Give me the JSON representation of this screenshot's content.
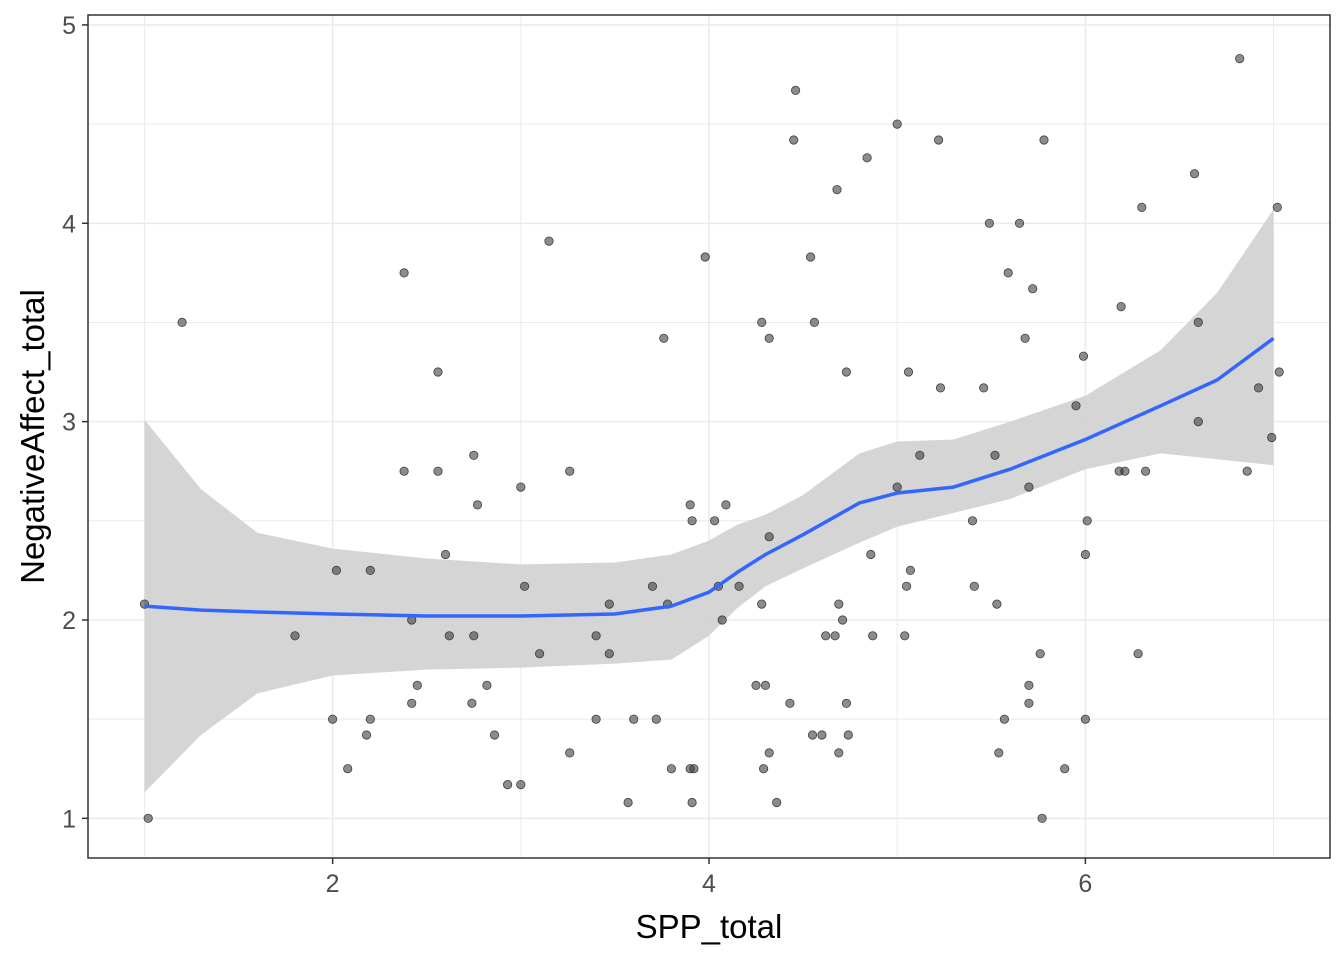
{
  "chart_data": {
    "type": "scatter",
    "title": "",
    "xlabel": "SPP_total",
    "ylabel": "NegativeAffect_total",
    "xlim": [
      0.7,
      7.3
    ],
    "ylim": [
      0.8,
      5.05
    ],
    "x_ticks": [
      2,
      4,
      6
    ],
    "y_ticks": [
      1,
      2,
      3,
      4,
      5
    ],
    "grid": true,
    "colors": {
      "points": "#404040",
      "smooth": "#3366ff",
      "ribbon": "#d3d3d3",
      "grid": "#ebebeb",
      "axis_text": "#4d4d4d"
    },
    "points": [
      [
        1.0,
        2.08
      ],
      [
        1.02,
        1.0
      ],
      [
        1.2,
        3.5
      ],
      [
        1.8,
        1.92
      ],
      [
        2.0,
        1.5
      ],
      [
        2.02,
        2.25
      ],
      [
        2.08,
        1.25
      ],
      [
        2.18,
        1.42
      ],
      [
        2.2,
        2.25
      ],
      [
        2.2,
        1.5
      ],
      [
        2.38,
        3.75
      ],
      [
        2.38,
        2.75
      ],
      [
        2.42,
        1.58
      ],
      [
        2.42,
        2.0
      ],
      [
        2.45,
        1.67
      ],
      [
        2.56,
        3.25
      ],
      [
        2.56,
        2.75
      ],
      [
        2.6,
        2.33
      ],
      [
        2.62,
        1.92
      ],
      [
        2.74,
        1.58
      ],
      [
        2.75,
        2.83
      ],
      [
        2.75,
        1.92
      ],
      [
        2.77,
        2.58
      ],
      [
        2.82,
        1.67
      ],
      [
        2.86,
        1.42
      ],
      [
        2.93,
        1.17
      ],
      [
        3.0,
        2.67
      ],
      [
        3.0,
        1.17
      ],
      [
        3.02,
        2.17
      ],
      [
        3.1,
        1.83
      ],
      [
        3.15,
        3.91
      ],
      [
        3.26,
        2.75
      ],
      [
        3.26,
        1.33
      ],
      [
        3.4,
        1.5
      ],
      [
        3.4,
        1.92
      ],
      [
        3.47,
        2.08
      ],
      [
        3.47,
        1.83
      ],
      [
        3.57,
        1.08
      ],
      [
        3.6,
        1.5
      ],
      [
        3.7,
        2.17
      ],
      [
        3.72,
        1.5
      ],
      [
        3.76,
        3.42
      ],
      [
        3.78,
        2.08
      ],
      [
        3.8,
        1.25
      ],
      [
        3.9,
        2.58
      ],
      [
        3.9,
        1.25
      ],
      [
        3.91,
        2.5
      ],
      [
        3.91,
        1.08
      ],
      [
        3.92,
        1.25
      ],
      [
        3.98,
        3.83
      ],
      [
        4.03,
        2.5
      ],
      [
        4.05,
        2.17
      ],
      [
        4.07,
        2.0
      ],
      [
        4.09,
        2.58
      ],
      [
        4.16,
        2.17
      ],
      [
        4.25,
        1.67
      ],
      [
        4.28,
        3.5
      ],
      [
        4.28,
        2.08
      ],
      [
        4.29,
        1.25
      ],
      [
        4.3,
        1.67
      ],
      [
        4.32,
        2.42
      ],
      [
        4.32,
        3.42
      ],
      [
        4.32,
        1.33
      ],
      [
        4.36,
        1.08
      ],
      [
        4.43,
        1.58
      ],
      [
        4.45,
        4.42
      ],
      [
        4.46,
        4.67
      ],
      [
        4.54,
        3.83
      ],
      [
        4.55,
        1.42
      ],
      [
        4.56,
        3.5
      ],
      [
        4.6,
        1.42
      ],
      [
        4.62,
        1.92
      ],
      [
        4.67,
        1.92
      ],
      [
        4.68,
        4.17
      ],
      [
        4.69,
        2.08
      ],
      [
        4.69,
        1.33
      ],
      [
        4.71,
        2.0
      ],
      [
        4.73,
        1.58
      ],
      [
        4.73,
        3.25
      ],
      [
        4.74,
        1.42
      ],
      [
        4.84,
        4.33
      ],
      [
        4.86,
        2.33
      ],
      [
        4.87,
        1.92
      ],
      [
        5.0,
        4.5
      ],
      [
        5.0,
        2.67
      ],
      [
        5.04,
        1.92
      ],
      [
        5.05,
        2.17
      ],
      [
        5.06,
        3.25
      ],
      [
        5.07,
        2.25
      ],
      [
        5.12,
        2.83
      ],
      [
        5.22,
        4.42
      ],
      [
        5.23,
        3.17
      ],
      [
        5.4,
        2.5
      ],
      [
        5.41,
        2.17
      ],
      [
        5.46,
        3.17
      ],
      [
        5.49,
        4.0
      ],
      [
        5.52,
        2.83
      ],
      [
        5.53,
        2.08
      ],
      [
        5.54,
        1.33
      ],
      [
        5.57,
        1.5
      ],
      [
        5.59,
        3.75
      ],
      [
        5.65,
        4.0
      ],
      [
        5.68,
        3.42
      ],
      [
        5.7,
        2.67
      ],
      [
        5.7,
        1.58
      ],
      [
        5.7,
        1.67
      ],
      [
        5.72,
        3.67
      ],
      [
        5.76,
        1.83
      ],
      [
        5.77,
        1.0
      ],
      [
        5.78,
        4.42
      ],
      [
        5.89,
        1.25
      ],
      [
        5.95,
        3.08
      ],
      [
        5.99,
        3.33
      ],
      [
        6.0,
        2.33
      ],
      [
        6.0,
        1.5
      ],
      [
        6.01,
        2.5
      ],
      [
        6.18,
        2.75
      ],
      [
        6.19,
        3.58
      ],
      [
        6.21,
        2.75
      ],
      [
        6.28,
        1.83
      ],
      [
        6.3,
        4.08
      ],
      [
        6.32,
        2.75
      ],
      [
        6.58,
        4.25
      ],
      [
        6.6,
        3.0
      ],
      [
        6.6,
        3.5
      ],
      [
        6.82,
        4.83
      ],
      [
        6.86,
        2.75
      ],
      [
        6.92,
        3.17
      ],
      [
        6.99,
        2.92
      ],
      [
        7.02,
        4.08
      ],
      [
        7.03,
        3.25
      ]
    ],
    "smooth": {
      "x": [
        1.0,
        1.3,
        1.6,
        2.0,
        2.5,
        3.0,
        3.5,
        3.8,
        4.0,
        4.15,
        4.3,
        4.5,
        4.8,
        5.0,
        5.3,
        5.6,
        6.0,
        6.4,
        6.7,
        7.0
      ],
      "y": [
        2.07,
        2.05,
        2.04,
        2.03,
        2.02,
        2.02,
        2.03,
        2.07,
        2.14,
        2.24,
        2.33,
        2.43,
        2.59,
        2.64,
        2.67,
        2.76,
        2.91,
        3.08,
        3.21,
        3.42
      ],
      "lower": [
        1.13,
        1.42,
        1.63,
        1.72,
        1.75,
        1.76,
        1.78,
        1.8,
        1.92,
        2.06,
        2.17,
        2.26,
        2.39,
        2.47,
        2.54,
        2.61,
        2.76,
        2.84,
        2.81,
        2.78
      ],
      "upper": [
        3.01,
        2.66,
        2.44,
        2.36,
        2.31,
        2.28,
        2.29,
        2.33,
        2.4,
        2.48,
        2.53,
        2.63,
        2.84,
        2.9,
        2.91,
        3.0,
        3.13,
        3.36,
        3.65,
        4.07
      ]
    }
  }
}
